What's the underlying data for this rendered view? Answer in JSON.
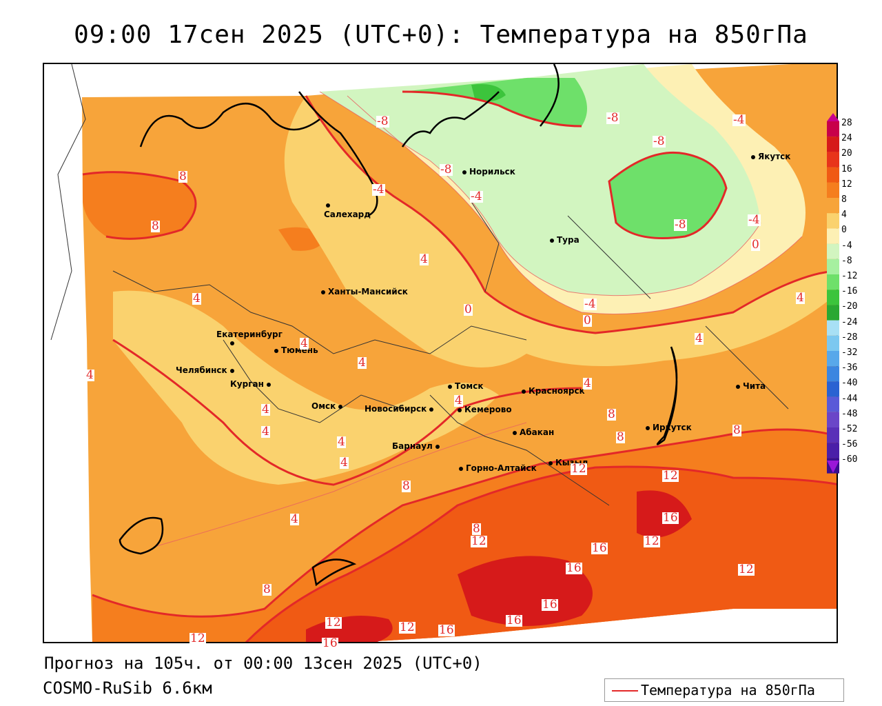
{
  "title": "09:00 17сен 2025 (UTC+0): Температура на 850гПа",
  "footer": {
    "forecast": "Прогноз на 105ч. от 00:00 13сен 2025 (UTC+0)",
    "model": "COSMO-RuSib 6.6км"
  },
  "legend": {
    "label": "Температура на 850гПа",
    "line_color": "#e32828"
  },
  "colorbar": {
    "levels": [
      "28",
      "24",
      "20",
      "16",
      "12",
      "8",
      "4",
      "0",
      "-4",
      "-8",
      "-12",
      "-16",
      "-20",
      "-24",
      "-28",
      "-32",
      "-36",
      "-40",
      "-44",
      "-48",
      "-52",
      "-56",
      "-60"
    ],
    "colors": [
      "#c8004a",
      "#d61a1a",
      "#e8341a",
      "#f05a14",
      "#f57e1e",
      "#f7a43a",
      "#fad26e",
      "#fdf0b4",
      "#d2f5c0",
      "#a6f0a0",
      "#6ee06a",
      "#3cc43c",
      "#2aa832",
      "#a8e0f5",
      "#7cc8f0",
      "#58a8ea",
      "#3c86e0",
      "#2a62d2",
      "#5a5ad8",
      "#6a46c8",
      "#5a30b8",
      "#4a1ea8",
      "#3a0e90"
    ]
  },
  "cities": [
    {
      "name": "Норильск"
    },
    {
      "name": "Якутск"
    },
    {
      "name": "Салехард"
    },
    {
      "name": "Тура"
    },
    {
      "name": "Ханты-Мансийск"
    },
    {
      "name": "Екатеринбург"
    },
    {
      "name": "Тюмень"
    },
    {
      "name": "Челябинск"
    },
    {
      "name": "Курган"
    },
    {
      "name": "Омск"
    },
    {
      "name": "Томск"
    },
    {
      "name": "Красноярск"
    },
    {
      "name": "Новосибирск"
    },
    {
      "name": "Кемерово"
    },
    {
      "name": "Чита"
    },
    {
      "name": "Иркутск"
    },
    {
      "name": "Абакан"
    },
    {
      "name": "Барнаул"
    },
    {
      "name": "Горно-Алтайск"
    },
    {
      "name": "Кызыл"
    }
  ],
  "contour_labels": [
    "-8",
    "-8",
    "-8",
    "-4",
    "-8",
    "-8",
    "-4",
    "-4",
    "0",
    "-4",
    "0",
    "-4",
    "0",
    "8",
    "8",
    "4",
    "4",
    "4",
    "4",
    "4",
    "4",
    "4",
    "4",
    "4",
    "4",
    "4",
    "4",
    "4",
    "4",
    "8",
    "8",
    "8",
    "8",
    "12",
    "12",
    "16",
    "12",
    "16",
    "16",
    "16",
    "12",
    "12",
    "16",
    "16",
    "12",
    "12",
    "8",
    "8",
    "12",
    "16"
  ]
}
